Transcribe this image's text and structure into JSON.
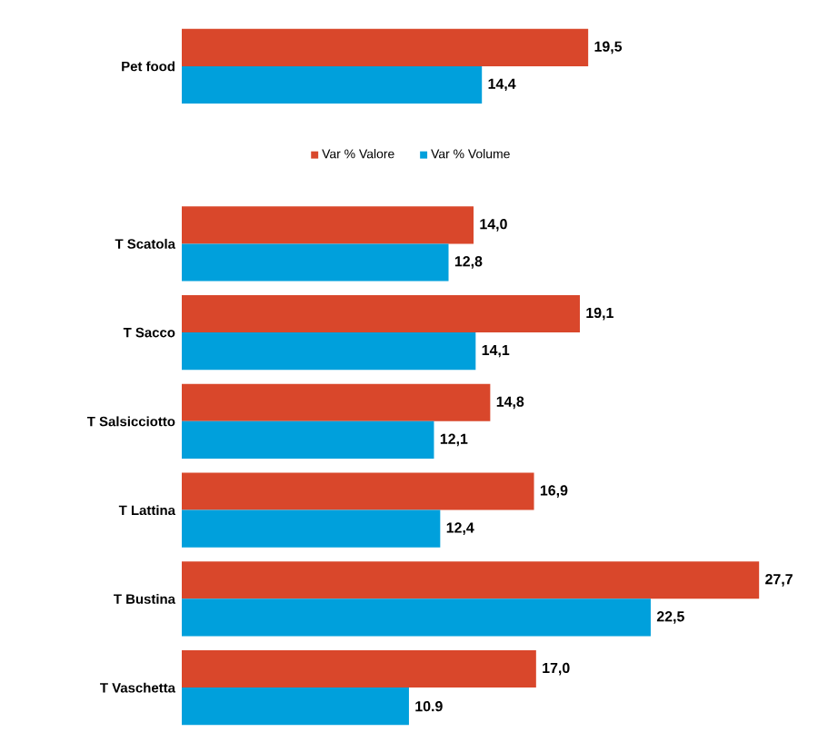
{
  "chart_data": {
    "type": "bar",
    "orientation": "horizontal",
    "categories": [
      "Pet food",
      null,
      "T Scatola",
      "T Sacco",
      "T Salsicciotto",
      "T Lattina",
      "T Bustina",
      "T Vaschetta"
    ],
    "series": [
      {
        "name": "Var % Valore",
        "color": "#d9472b",
        "values": [
          19.5,
          null,
          14.0,
          19.1,
          14.8,
          16.9,
          27.7,
          17.0
        ],
        "value_labels": [
          "19,5",
          null,
          "14,0",
          "19,1",
          "14,8",
          "16,9",
          "27,7",
          "17,0"
        ]
      },
      {
        "name": "Var % Volume",
        "color": "#00a0dc",
        "values": [
          14.4,
          null,
          12.8,
          14.1,
          12.1,
          12.4,
          22.5,
          10.9
        ],
        "value_labels": [
          "14,4",
          null,
          "12,8",
          "14,1",
          "12,1",
          "12,4",
          "22,5",
          "10.9"
        ]
      }
    ],
    "tick_labels": "y",
    "legend": "top"
  }
}
